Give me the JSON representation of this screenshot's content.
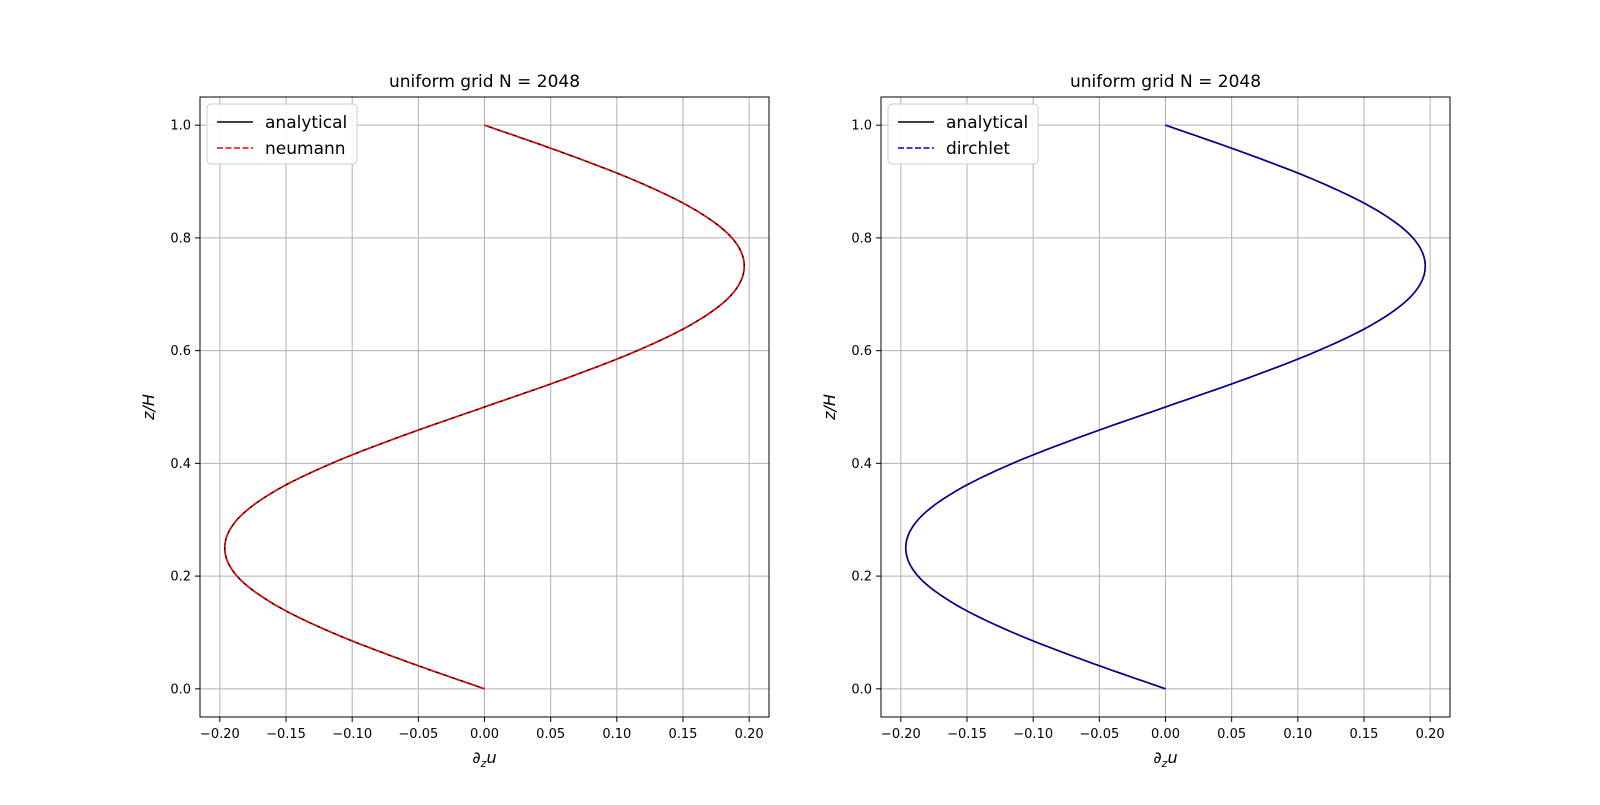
{
  "chart_data": [
    {
      "type": "line",
      "title": "uniform grid N = 2048",
      "xlabel": "∂",
      "xlabel_sub": "z",
      "xlabel_tail": "u",
      "ylabel": "z/H",
      "xlim": [
        -0.215,
        0.215
      ],
      "ylim": [
        -0.05,
        1.05
      ],
      "xticks": [
        -0.2,
        -0.15,
        -0.1,
        -0.05,
        0.0,
        0.05,
        0.1,
        0.15,
        0.2
      ],
      "xtick_labels": [
        "−0.20",
        "−0.15",
        "−0.10",
        "−0.05",
        "0.00",
        "0.05",
        "0.10",
        "0.15",
        "0.20"
      ],
      "yticks": [
        0.0,
        0.2,
        0.4,
        0.6,
        0.8,
        1.0
      ],
      "ytick_labels": [
        "0.0",
        "0.2",
        "0.4",
        "0.6",
        "0.8",
        "1.0"
      ],
      "grid": true,
      "legend_position": "upper-left",
      "series": [
        {
          "name": "analytical",
          "color": "#000000",
          "dash": "solid",
          "x": [
            0.0,
            -0.0607,
            -0.1155,
            -0.159,
            -0.187,
            -0.1963,
            -0.187,
            -0.159,
            -0.1155,
            -0.0607,
            0.0,
            0.0607,
            0.1155,
            0.159,
            0.187,
            0.1963,
            0.187,
            0.159,
            0.1155,
            0.0607,
            0.0
          ],
          "y": [
            0.0,
            0.05,
            0.1,
            0.15,
            0.2,
            0.25,
            0.3,
            0.35,
            0.4,
            0.45,
            0.5,
            0.55,
            0.6,
            0.65,
            0.7,
            0.75,
            0.8,
            0.85,
            0.9,
            0.95,
            1.0
          ]
        },
        {
          "name": "neumann",
          "color": "#ff0000",
          "dash": "dashed",
          "x": [
            0.0,
            -0.0607,
            -0.1155,
            -0.159,
            -0.187,
            -0.1963,
            -0.187,
            -0.159,
            -0.1155,
            -0.0607,
            0.0,
            0.0607,
            0.1155,
            0.159,
            0.187,
            0.1963,
            0.187,
            0.159,
            0.1155,
            0.0607,
            0.0
          ],
          "y": [
            0.0,
            0.05,
            0.1,
            0.15,
            0.2,
            0.25,
            0.3,
            0.35,
            0.4,
            0.45,
            0.5,
            0.55,
            0.6,
            0.65,
            0.7,
            0.75,
            0.8,
            0.85,
            0.9,
            0.95,
            1.0
          ]
        }
      ]
    },
    {
      "type": "line",
      "title": "uniform grid N = 2048",
      "xlabel": "∂",
      "xlabel_sub": "z",
      "xlabel_tail": "u",
      "ylabel": "z/H",
      "xlim": [
        -0.215,
        0.215
      ],
      "ylim": [
        -0.05,
        1.05
      ],
      "xticks": [
        -0.2,
        -0.15,
        -0.1,
        -0.05,
        0.0,
        0.05,
        0.1,
        0.15,
        0.2
      ],
      "xtick_labels": [
        "−0.20",
        "−0.15",
        "−0.10",
        "−0.05",
        "0.00",
        "0.05",
        "0.10",
        "0.15",
        "0.20"
      ],
      "yticks": [
        0.0,
        0.2,
        0.4,
        0.6,
        0.8,
        1.0
      ],
      "ytick_labels": [
        "0.0",
        "0.2",
        "0.4",
        "0.6",
        "0.8",
        "1.0"
      ],
      "grid": true,
      "legend_position": "upper-left",
      "series": [
        {
          "name": "analytical",
          "color": "#000000",
          "dash": "solid",
          "x": [
            0.0,
            -0.0607,
            -0.1155,
            -0.159,
            -0.187,
            -0.1963,
            -0.187,
            -0.159,
            -0.1155,
            -0.0607,
            0.0,
            0.0607,
            0.1155,
            0.159,
            0.187,
            0.1963,
            0.187,
            0.159,
            0.1155,
            0.0607,
            0.0
          ],
          "y": [
            0.0,
            0.05,
            0.1,
            0.15,
            0.2,
            0.25,
            0.3,
            0.35,
            0.4,
            0.45,
            0.5,
            0.55,
            0.6,
            0.65,
            0.7,
            0.75,
            0.8,
            0.85,
            0.9,
            0.95,
            1.0
          ]
        },
        {
          "name": "dirchlet",
          "color": "#0000cc",
          "dash": "dashed",
          "x": [
            0.0,
            -0.0607,
            -0.1155,
            -0.159,
            -0.187,
            -0.1963,
            -0.187,
            -0.159,
            -0.1155,
            -0.0607,
            0.0,
            0.0607,
            0.1155,
            0.159,
            0.187,
            0.1963,
            0.187,
            0.159,
            0.1155,
            0.0607,
            0.0
          ],
          "y": [
            0.0,
            0.05,
            0.1,
            0.15,
            0.2,
            0.25,
            0.3,
            0.35,
            0.4,
            0.45,
            0.5,
            0.55,
            0.6,
            0.65,
            0.7,
            0.75,
            0.8,
            0.85,
            0.9,
            0.95,
            1.0
          ]
        }
      ]
    }
  ]
}
